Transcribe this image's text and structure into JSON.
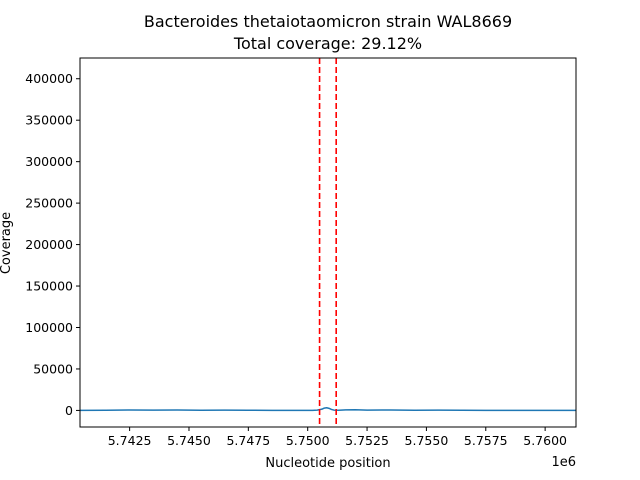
{
  "chart_data": {
    "type": "line",
    "title_line1": "Bacteroides thetaiotaomicron strain WAL8669",
    "title_line2": "Total coverage: 29.12%",
    "xlabel": "Nucleotide position",
    "ylabel": "Coverage",
    "x_offset_label": "1e6",
    "x_tick_labels": [
      "5.7425",
      "5.7450",
      "5.7475",
      "5.7500",
      "5.7525",
      "5.7550",
      "5.7575",
      "5.7600"
    ],
    "y_tick_labels": [
      "0",
      "50000",
      "100000",
      "150000",
      "200000",
      "250000",
      "300000",
      "350000",
      "400000"
    ],
    "xlim": [
      5740410,
      5761300
    ],
    "ylim": [
      -20000,
      425000
    ],
    "grid": false,
    "series": [
      {
        "color": "#1f77b4",
        "x": [
          5740410,
          5741500,
          5742500,
          5743500,
          5744500,
          5745500,
          5746500,
          5747500,
          5748500,
          5749500,
          5750200,
          5750400,
          5750600,
          5750700,
          5750800,
          5750900,
          5751000,
          5751100,
          5751300,
          5751600,
          5752000,
          5752500,
          5753500,
          5754500,
          5755500,
          5756500,
          5757500,
          5758500,
          5759500,
          5760500,
          5761300
        ],
        "y": [
          0,
          150,
          500,
          300,
          450,
          200,
          350,
          150,
          100,
          80,
          60,
          300,
          1500,
          2800,
          3200,
          2500,
          1200,
          400,
          200,
          600,
          800,
          400,
          500,
          200,
          300,
          150,
          100,
          120,
          80,
          60,
          50
        ]
      }
    ],
    "vlines": {
      "color": "#ff0000",
      "style": "dashed",
      "x": [
        5750500,
        5751200
      ]
    }
  }
}
